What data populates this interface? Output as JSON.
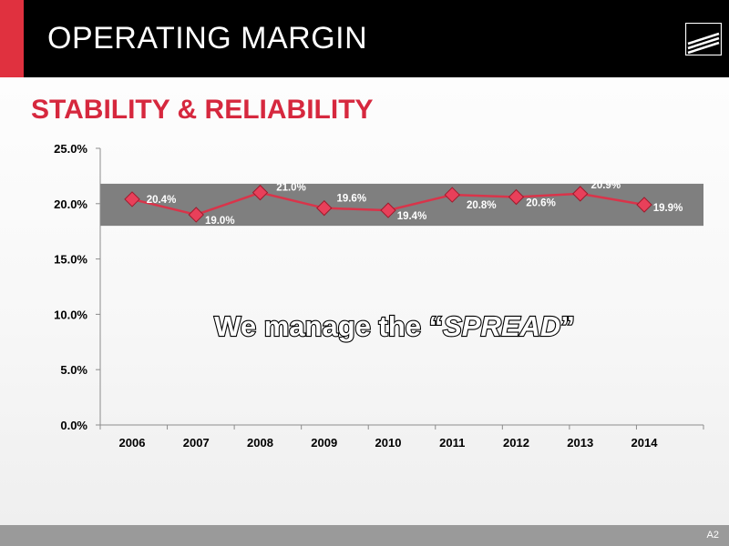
{
  "header": {
    "title": "OPERATING MARGIN"
  },
  "subtitle": "STABILITY & RELIABILITY",
  "footer": {
    "page": "A2"
  },
  "colors": {
    "accent_red": "#e0313f",
    "subtitle_red": "#d6283e",
    "line_red": "#d9344a",
    "band_gray": "#7f7f7f"
  },
  "logo_icon": "stripes-logo-icon",
  "chart_data": {
    "type": "line",
    "x": [
      "2006",
      "2007",
      "2008",
      "2009",
      "2010",
      "2011",
      "2012",
      "2013",
      "2014"
    ],
    "series": [
      {
        "values": [
          20.4,
          19.0,
          21.0,
          19.6,
          19.4,
          20.8,
          20.6,
          20.9,
          19.9
        ],
        "labels": [
          "20.4%",
          "19.0%",
          "21.0%",
          "19.6%",
          "19.4%",
          "20.8%",
          "20.6%",
          "20.9%",
          "19.9%"
        ]
      }
    ],
    "ylim": [
      0,
      25
    ],
    "yticks": [
      "0.0%",
      "5.0%",
      "10.0%",
      "15.0%",
      "20.0%",
      "25.0%"
    ],
    "band": [
      18.0,
      21.8
    ],
    "grid": false,
    "annotation": {
      "prefix": "We manage the “",
      "emphasis": "SPREAD",
      "suffix": "”"
    }
  }
}
